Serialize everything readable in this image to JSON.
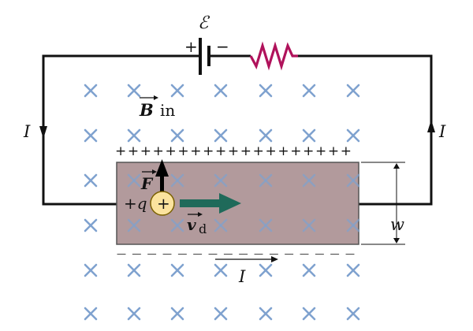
{
  "colors": {
    "wire": "#111111",
    "resistor": "#b0125b",
    "field_marker": "#7fa2cf",
    "conductor_fill": "#b29a9c",
    "conductor_edge": "#555555",
    "charge_fill": "#fbe39e",
    "charge_edge": "#7a6000",
    "drift_arrow": "#1f6a5a",
    "force_arrow": "#000000"
  },
  "labels": {
    "emf": "ℰ",
    "battery_plus": "+",
    "battery_minus": "−",
    "current_left": "I",
    "current_right": "I",
    "current_bottom": "I",
    "field": "B",
    "field_suffix": "in",
    "force": "F",
    "charge": "+q",
    "charge_symbol": "+",
    "drift": "v",
    "drift_sub": "d",
    "width": "w",
    "top_charges": "+++++++++++++++++++",
    "bottom_charges": "— — — — — — — — — — — — — — — —"
  },
  "icons": {
    "field_marker": "cross-x-icon",
    "battery": "battery-icon",
    "resistor": "resistor-zigzag-icon"
  }
}
